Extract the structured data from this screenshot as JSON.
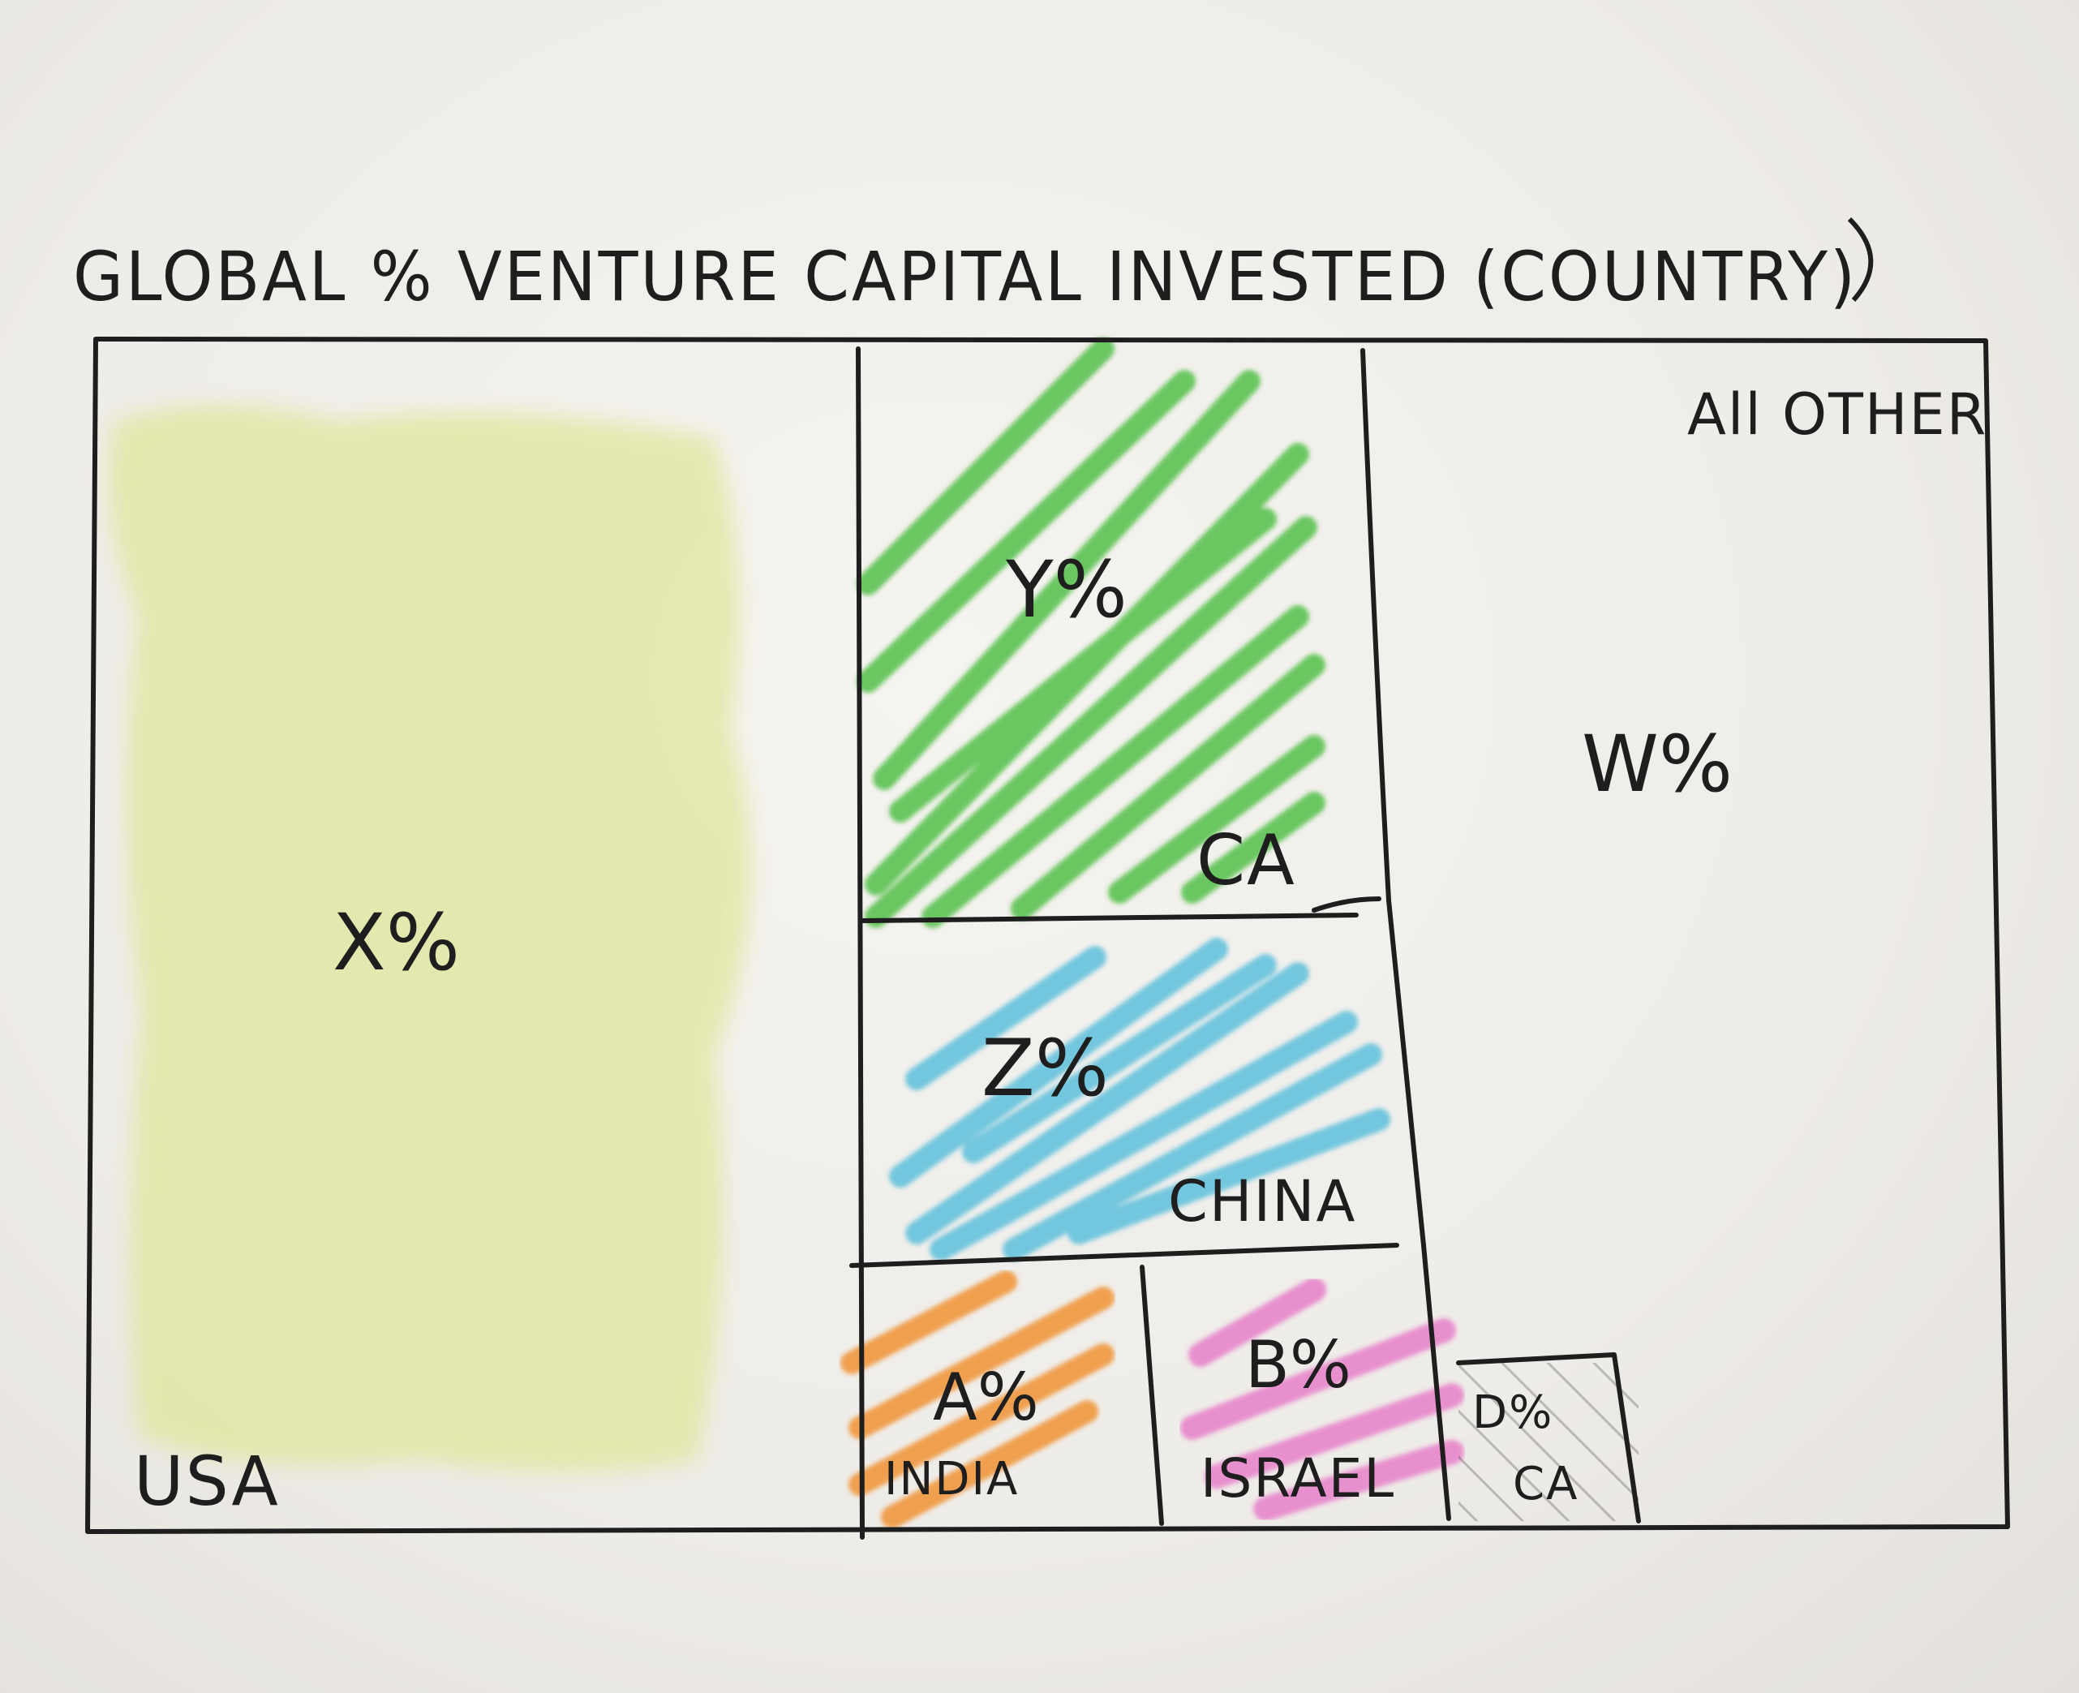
{
  "title": "GLOBAL % VENTURE CAPITAL INVESTED (COUNTRY)",
  "regions": [
    {
      "id": "usa",
      "country": "USA",
      "value": "X%",
      "color": "#dfe69a"
    },
    {
      "id": "ca",
      "country": "CA",
      "value": "Y%",
      "color": "#5cc251"
    },
    {
      "id": "china",
      "country": "CHINA",
      "value": "Z%",
      "color": "#5bbfdb"
    },
    {
      "id": "india",
      "country": "INDIA",
      "value": "A%",
      "color": "#f0973c"
    },
    {
      "id": "israel",
      "country": "ISRAEL",
      "value": "B%",
      "color": "#e77fc9"
    },
    {
      "id": "small-ca",
      "country": "CA",
      "value": "D%",
      "color": "#1e1e1e"
    },
    {
      "id": "other",
      "country": "All OTHER",
      "value": "W%",
      "color": "#efedea"
    }
  ]
}
